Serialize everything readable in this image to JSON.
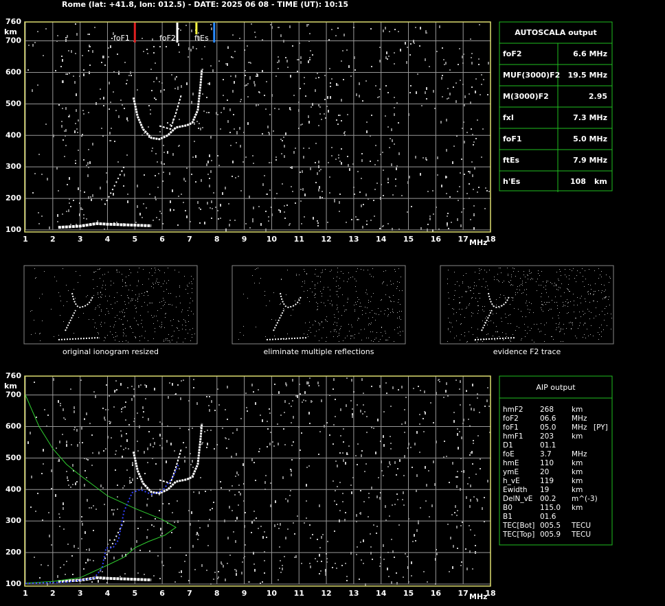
{
  "header": {
    "title": "Rome (lat: +41.8, lon: 012.5) - DATE: 2025 06 08 - TIME (UT): 10:15"
  },
  "plots": [
    {
      "y_unit": "km",
      "x_unit": "MHz",
      "y_ticks": [
        760,
        700,
        600,
        500,
        400,
        300,
        200,
        100
      ],
      "x_ticks": [
        1,
        2,
        3,
        4,
        5,
        6,
        7,
        8,
        9,
        10,
        11,
        12,
        13,
        14,
        15,
        16,
        17,
        18
      ],
      "markers": [
        "foF1",
        "foF2",
        "ftEs"
      ]
    },
    {
      "y_unit": "km",
      "x_unit": "MHz",
      "y_ticks": [
        760,
        700,
        600,
        500,
        400,
        300,
        200,
        100
      ],
      "x_ticks": [
        1,
        2,
        3,
        4,
        5,
        6,
        7,
        8,
        9,
        10,
        11,
        12,
        13,
        14,
        15,
        16,
        17,
        18
      ]
    }
  ],
  "autoscala": {
    "title": "AUTOSCALA output",
    "rows": [
      [
        "foF2",
        "6.6 MHz"
      ],
      [
        "MUF(3000)F2",
        "19.5 MHz"
      ],
      [
        "M(3000)F2",
        "2.95"
      ],
      [
        "fxI",
        "7.3 MHz"
      ],
      [
        "foF1",
        "5.0 MHz"
      ],
      [
        "ftEs",
        "7.9 MHz"
      ],
      [
        "h'Es",
        "108",
        "km"
      ]
    ]
  },
  "thumbnails": [
    "original ionogram resized",
    "eliminate multiple reflections",
    "evidence F2 trace"
  ],
  "aip": {
    "title": "AIP output",
    "rows": [
      [
        "hmF2",
        "268",
        "km"
      ],
      [
        "foF2",
        "06.6",
        "MHz"
      ],
      [
        "foF1",
        "05.0",
        "MHz",
        "[PY]"
      ],
      [
        "hmF1",
        "203",
        "km"
      ],
      [
        "D1",
        "01.1"
      ],
      [
        "foE",
        "3.7",
        "MHz"
      ],
      [
        "hmE",
        "110",
        "km"
      ],
      [
        "ymE",
        "20",
        "km"
      ],
      [
        "h_vE",
        "119",
        "km"
      ],
      [
        "Ewidth",
        "19",
        "km"
      ],
      [
        "DelN_vE",
        "00.2",
        "m^(-3)"
      ],
      [
        "B0",
        "115.0",
        "km"
      ],
      [
        "B1",
        "01.6"
      ],
      [
        "TEC[Bot]",
        "005.5",
        "TECU"
      ],
      [
        "TEC[Top]",
        "005.9",
        "TECU"
      ]
    ]
  }
}
